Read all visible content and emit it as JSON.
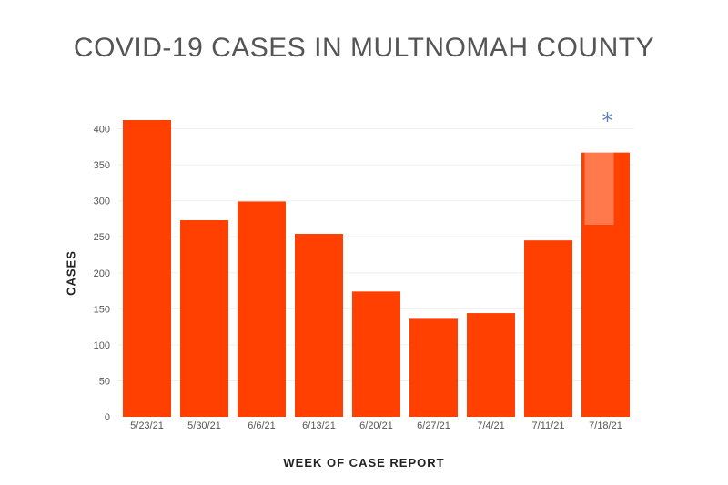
{
  "chart_data": {
    "type": "bar",
    "title": "COVID-19 CASES IN MULTNOMAH COUNTY",
    "xlabel": "WEEK OF CASE REPORT",
    "ylabel": "CASES",
    "categories": [
      "5/23/21",
      "5/30/21",
      "6/6/21",
      "6/13/21",
      "6/20/21",
      "6/27/21",
      "7/4/21",
      "7/11/21",
      "7/18/21"
    ],
    "values": [
      412,
      273,
      299,
      254,
      174,
      136,
      144,
      245,
      367
    ],
    "yticks": [
      0,
      50,
      100,
      150,
      200,
      250,
      300,
      350,
      400
    ],
    "ylim": [
      0,
      400
    ],
    "grid": true,
    "bar_color": "#ff4000",
    "annotation": {
      "text": "*",
      "category": "7/18/21",
      "color": "#5b7fb8"
    }
  }
}
